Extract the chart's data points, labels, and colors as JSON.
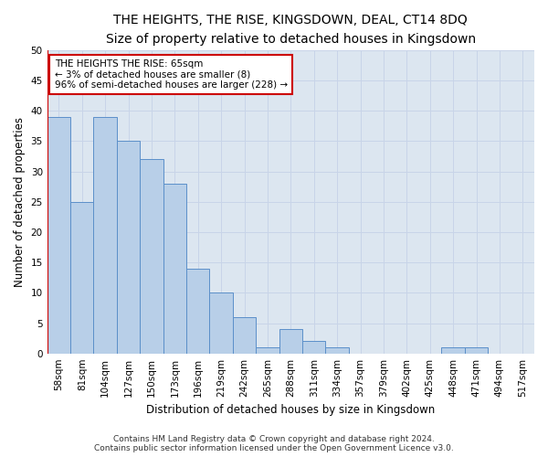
{
  "title": "THE HEIGHTS, THE RISE, KINGSDOWN, DEAL, CT14 8DQ",
  "subtitle": "Size of property relative to detached houses in Kingsdown",
  "xlabel": "Distribution of detached houses by size in Kingsdown",
  "ylabel": "Number of detached properties",
  "categories": [
    "58sqm",
    "81sqm",
    "104sqm",
    "127sqm",
    "150sqm",
    "173sqm",
    "196sqm",
    "219sqm",
    "242sqm",
    "265sqm",
    "288sqm",
    "311sqm",
    "334sqm",
    "357sqm",
    "379sqm",
    "402sqm",
    "425sqm",
    "448sqm",
    "471sqm",
    "494sqm",
    "517sqm"
  ],
  "values": [
    39,
    25,
    39,
    35,
    32,
    28,
    14,
    10,
    6,
    1,
    4,
    2,
    1,
    0,
    0,
    0,
    0,
    1,
    1,
    0,
    0
  ],
  "bar_color": "#b8cfe8",
  "bar_edge_color": "#5b8fc9",
  "highlight_line_color": "#cc0000",
  "annotation_text": "THE HEIGHTS THE RISE: 65sqm\n← 3% of detached houses are smaller (8)\n96% of semi-detached houses are larger (228) →",
  "annotation_box_color": "#ffffff",
  "annotation_box_edge_color": "#cc0000",
  "ylim": [
    0,
    50
  ],
  "yticks": [
    0,
    5,
    10,
    15,
    20,
    25,
    30,
    35,
    40,
    45,
    50
  ],
  "grid_color": "#c8d4e8",
  "background_color": "#dce6f0",
  "footer_line1": "Contains HM Land Registry data © Crown copyright and database right 2024.",
  "footer_line2": "Contains public sector information licensed under the Open Government Licence v3.0.",
  "title_fontsize": 10,
  "subtitle_fontsize": 9,
  "xlabel_fontsize": 8.5,
  "ylabel_fontsize": 8.5,
  "tick_fontsize": 7.5,
  "footer_fontsize": 6.5,
  "annotation_fontsize": 7.5
}
